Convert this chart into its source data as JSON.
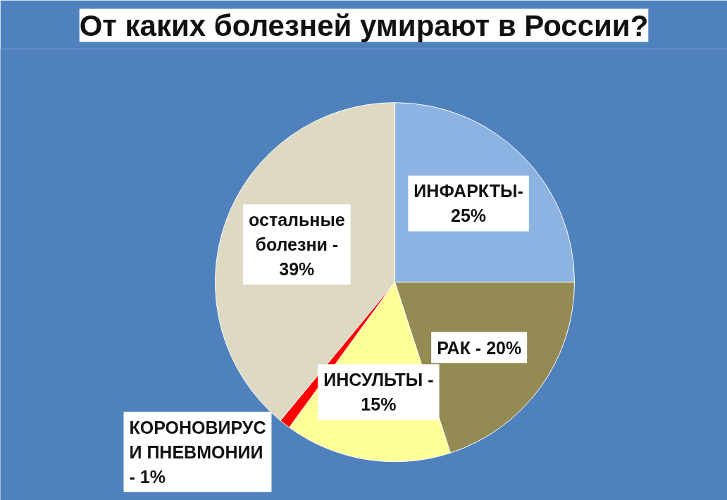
{
  "chart_data": {
    "type": "pie",
    "title": "От каких болезней умирают в России?",
    "categories": [
      "ИНФАРКТЫ-\n25%",
      "РАК - 20%",
      "ИНСУЛЬТЫ -\n15%",
      "КОРОНОВИРУС\nИ ПНЕВМОНИИ\n- 1%",
      "остальные\nболезни -\n39%"
    ],
    "values": [
      25,
      20,
      15,
      1,
      39
    ],
    "colors": [
      "#8db3e2",
      "#948a54",
      "#ffff99",
      "#ff0000",
      "#ddd9c3"
    ]
  }
}
